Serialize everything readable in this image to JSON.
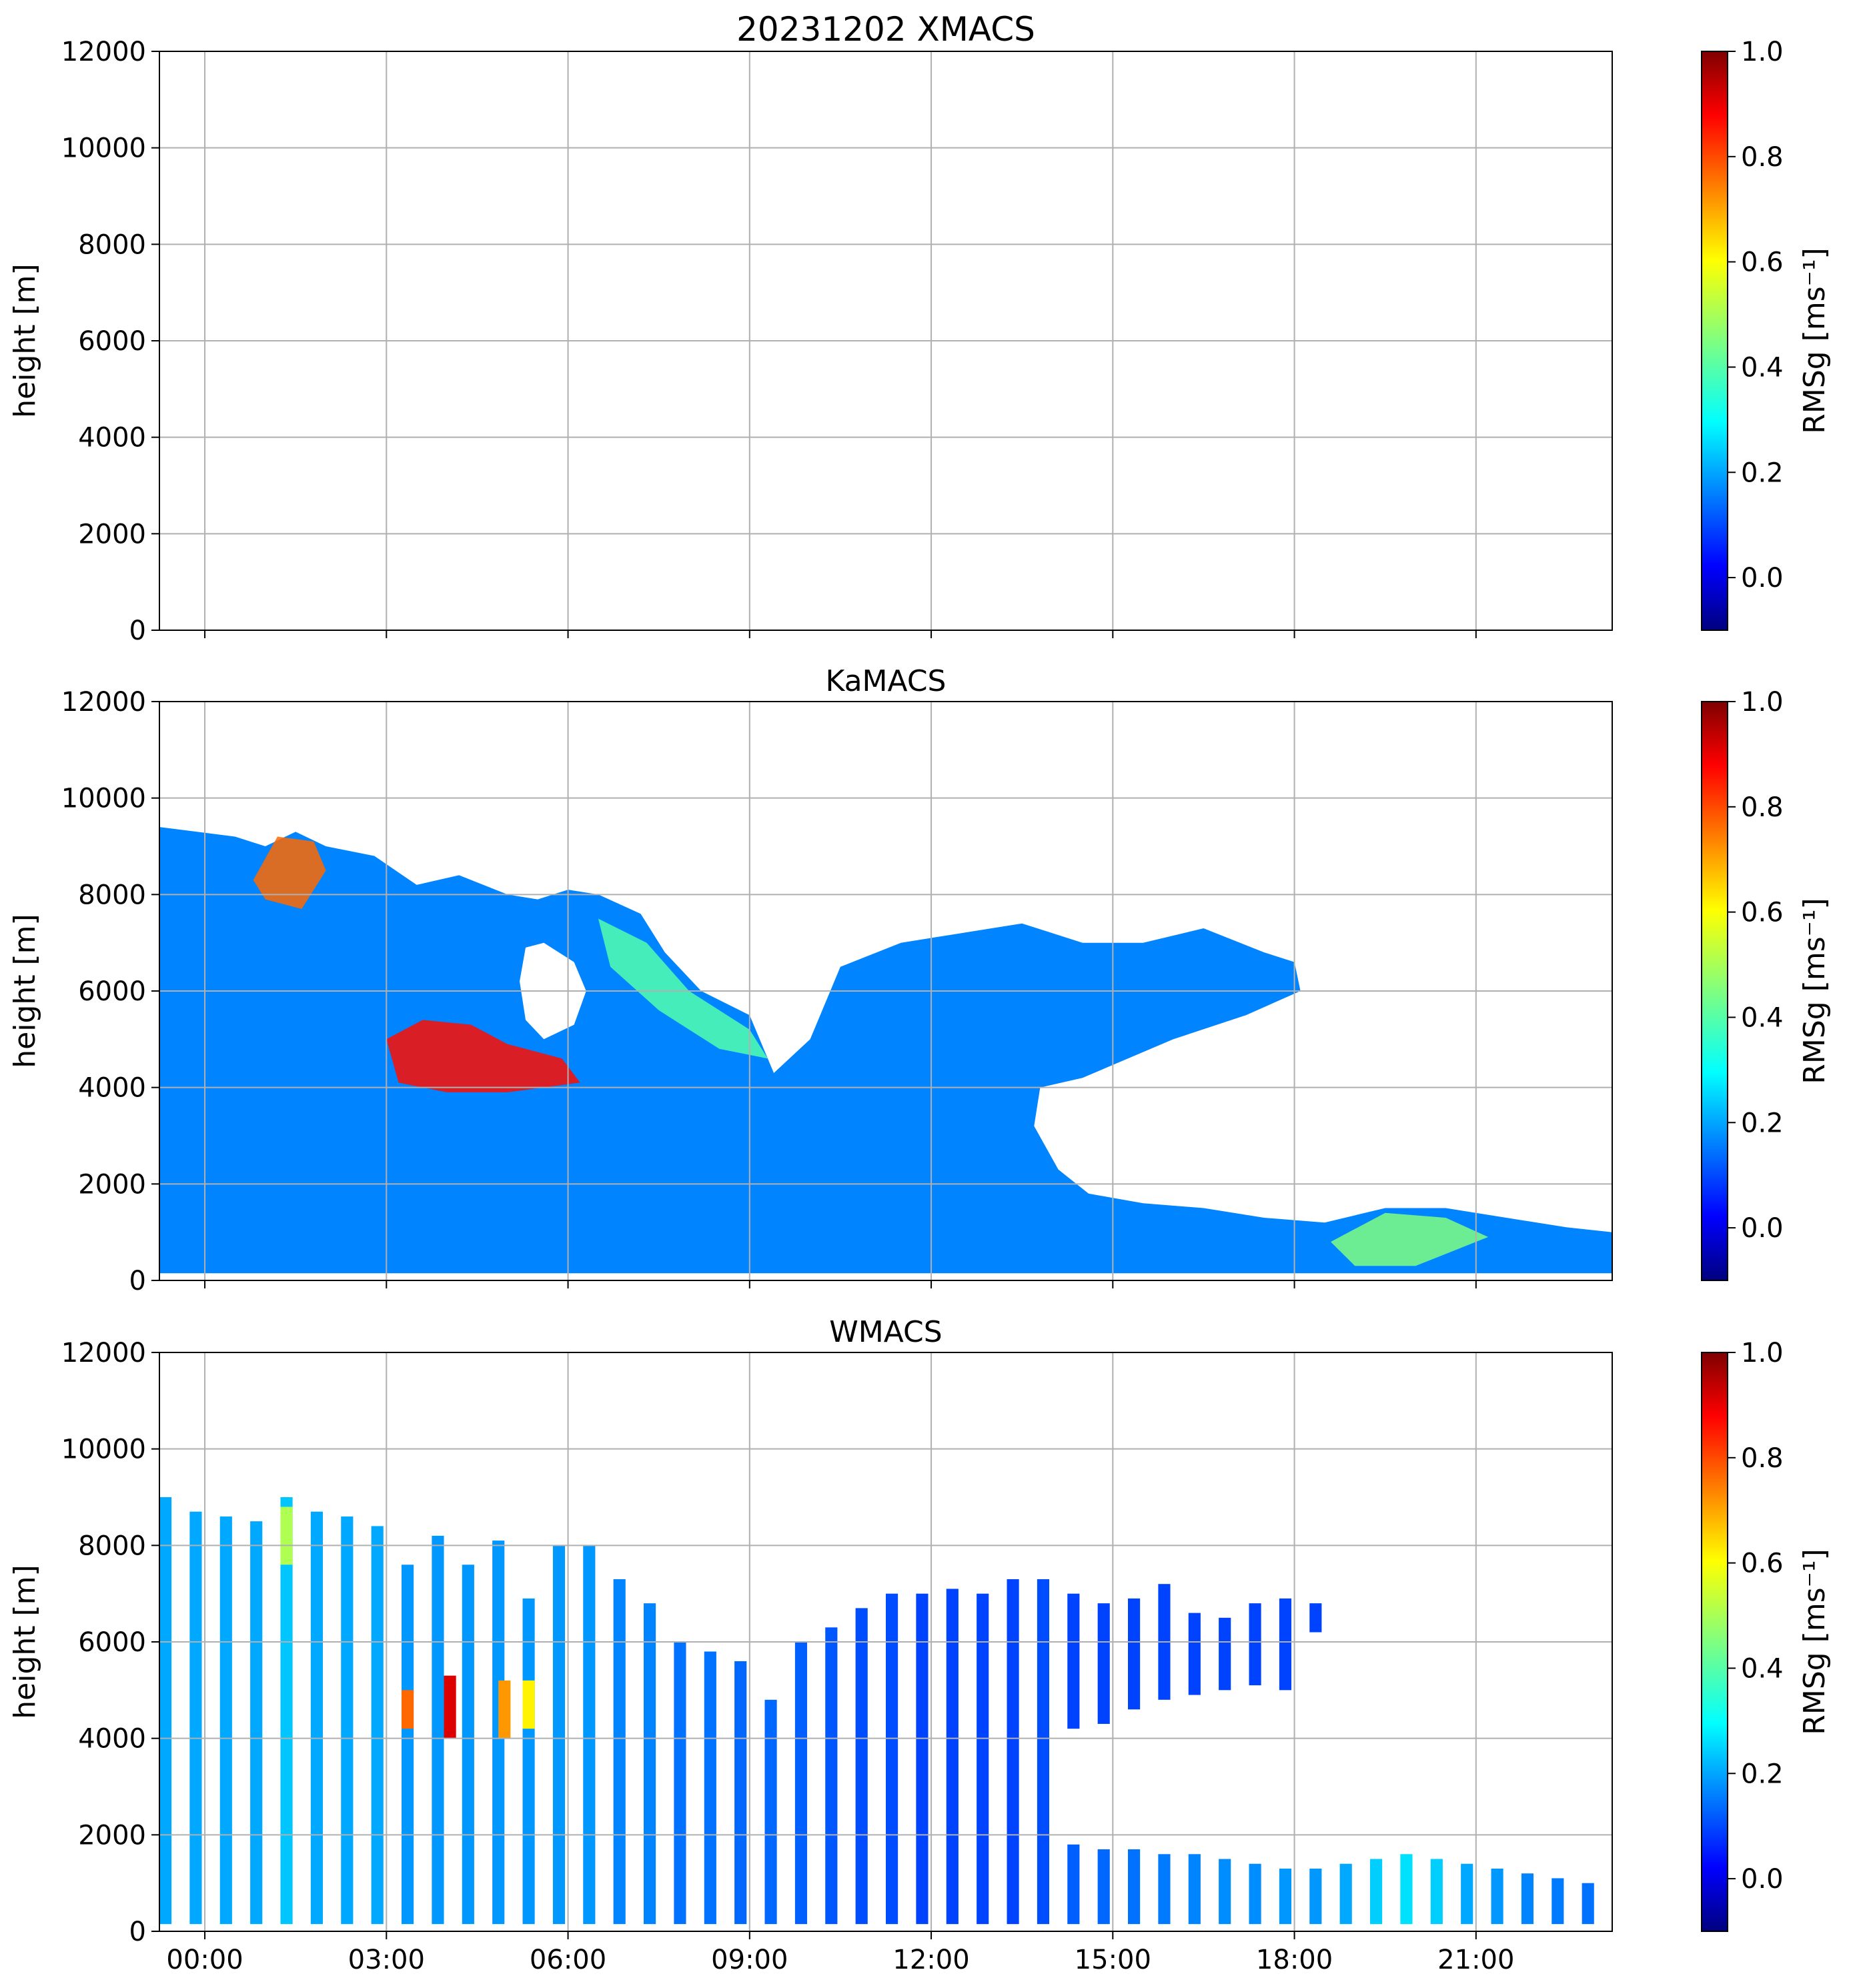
{
  "chart_data": [
    {
      "type": "heatmap",
      "panel": "XMACS",
      "title": "20231202 XMACS",
      "ylabel": "height [m]",
      "xlabel": "",
      "ylim": [
        0,
        12000
      ],
      "xlim_hours": [
        -0.75,
        23.25
      ],
      "yticks": [
        0,
        2000,
        4000,
        6000,
        8000,
        10000,
        12000
      ],
      "xticks_hours": [
        0,
        3,
        6,
        9,
        12,
        15,
        18,
        21
      ],
      "show_xticklabels": false,
      "grid": true,
      "data": "no valid returns (empty panel)",
      "colorbar": {
        "label": "RMSg [ms⁻¹]",
        "range": [
          -0.1,
          1.0
        ],
        "ticks": [
          0.0,
          0.2,
          0.4,
          0.6,
          0.8,
          1.0
        ],
        "cmap": "jet"
      },
      "cloud_regions": []
    },
    {
      "type": "heatmap",
      "panel": "KaMACS",
      "title": "KaMACS",
      "ylabel": "height [m]",
      "xlabel": "",
      "ylim": [
        0,
        12000
      ],
      "xlim_hours": [
        -0.75,
        23.25
      ],
      "yticks": [
        0,
        2000,
        4000,
        6000,
        8000,
        10000,
        12000
      ],
      "xticks_hours": [
        0,
        3,
        6,
        9,
        12,
        15,
        18,
        21
      ],
      "show_xticklabels": false,
      "grid": true,
      "colorbar": {
        "label": "RMSg [ms⁻¹]",
        "range": [
          -0.1,
          1.0
        ],
        "ticks": [
          0.0,
          0.2,
          0.4,
          0.6,
          0.8,
          1.0
        ],
        "cmap": "jet"
      },
      "cloud_regions": [
        {
          "name": "upper cloud deck",
          "rmsg_typical": 0.18,
          "rmsg_max": 1.0,
          "outline": [
            [
              -0.75,
              9400
            ],
            [
              0.5,
              9200
            ],
            [
              1.0,
              9000
            ],
            [
              1.5,
              9300
            ],
            [
              2.0,
              9000
            ],
            [
              2.8,
              8800
            ],
            [
              3.5,
              8200
            ],
            [
              4.2,
              8400
            ],
            [
              5.0,
              8000
            ],
            [
              5.5,
              7900
            ],
            [
              6.0,
              8100
            ],
            [
              6.5,
              8000
            ],
            [
              7.2,
              7600
            ],
            [
              7.6,
              6800
            ],
            [
              8.2,
              6000
            ],
            [
              9.0,
              5500
            ],
            [
              9.4,
              4300
            ],
            [
              10.0,
              5000
            ],
            [
              10.5,
              6500
            ],
            [
              11.5,
              7000
            ],
            [
              12.5,
              7200
            ],
            [
              13.5,
              7400
            ],
            [
              14.5,
              7000
            ],
            [
              15.5,
              7000
            ],
            [
              16.5,
              7300
            ],
            [
              17.5,
              6800
            ],
            [
              18.0,
              6600
            ],
            [
              18.1,
              6000
            ],
            [
              17.2,
              5500
            ],
            [
              16.0,
              5000
            ],
            [
              14.5,
              4200
            ],
            [
              13.8,
              4000
            ],
            [
              13.7,
              3200
            ],
            [
              14.1,
              2300
            ],
            [
              14.6,
              1800
            ],
            [
              15.5,
              1600
            ],
            [
              16.5,
              1500
            ],
            [
              17.5,
              1300
            ],
            [
              18.5,
              1200
            ],
            [
              19.5,
              1500
            ],
            [
              20.5,
              1500
            ],
            [
              21.5,
              1300
            ],
            [
              22.5,
              1100
            ],
            [
              23.25,
              1000
            ],
            [
              23.25,
              150
            ],
            [
              -0.75,
              150
            ]
          ]
        },
        {
          "name": "clear gap",
          "rmsg_typical": null,
          "outline": [
            [
              5.3,
              6900
            ],
            [
              5.6,
              7000
            ],
            [
              6.1,
              6600
            ],
            [
              6.3,
              6000
            ],
            [
              6.1,
              5300
            ],
            [
              5.6,
              5000
            ],
            [
              5.3,
              5400
            ],
            [
              5.2,
              6200
            ]
          ]
        },
        {
          "name": "mid-level turbulence 03:00-06:00",
          "rmsg_typical": 0.85,
          "outline": [
            [
              3.0,
              5000
            ],
            [
              3.6,
              5400
            ],
            [
              4.4,
              5300
            ],
            [
              5.0,
              4900
            ],
            [
              5.9,
              4600
            ],
            [
              6.2,
              4100
            ],
            [
              5.0,
              3900
            ],
            [
              4.0,
              3900
            ],
            [
              3.2,
              4100
            ]
          ]
        },
        {
          "name": "turbulence aloft 01:00-02:00",
          "rmsg_typical": 0.75,
          "outline": [
            [
              0.8,
              8300
            ],
            [
              1.2,
              9200
            ],
            [
              1.8,
              9100
            ],
            [
              2.0,
              8500
            ],
            [
              1.6,
              7700
            ],
            [
              1.0,
              7900
            ]
          ]
        },
        {
          "name": "enhanced near-surface 19:00-21:00",
          "rmsg_typical": 0.45,
          "outline": [
            [
              18.6,
              800
            ],
            [
              19.5,
              1400
            ],
            [
              20.5,
              1300
            ],
            [
              21.2,
              900
            ],
            [
              20.0,
              300
            ],
            [
              19.0,
              300
            ]
          ]
        },
        {
          "name": "mid-level layer 07:00-09:00",
          "rmsg_typical": 0.4,
          "outline": [
            [
              6.5,
              7500
            ],
            [
              7.3,
              7000
            ],
            [
              8.0,
              6000
            ],
            [
              9.0,
              5200
            ],
            [
              9.3,
              4600
            ],
            [
              8.5,
              4800
            ],
            [
              7.5,
              5600
            ],
            [
              6.7,
              6500
            ]
          ]
        }
      ]
    },
    {
      "type": "heatmap",
      "panel": "WMACS",
      "title": "WMACS",
      "ylabel": "height [m]",
      "xlabel": "",
      "ylim": [
        0,
        12000
      ],
      "xlim_hours": [
        -0.75,
        23.25
      ],
      "yticks": [
        0,
        2000,
        4000,
        6000,
        8000,
        10000,
        12000
      ],
      "xticks_hours": [
        0,
        3,
        6,
        9,
        12,
        15,
        18,
        21
      ],
      "xticklabels": [
        "00:00",
        "03:00",
        "06:00",
        "09:00",
        "12:00",
        "15:00",
        "18:00",
        "21:00"
      ],
      "show_xticklabels": true,
      "grid": true,
      "colorbar": {
        "label": "RMSg [ms⁻¹]",
        "range": [
          -0.1,
          1.0
        ],
        "ticks": [
          0.0,
          0.2,
          0.4,
          0.6,
          0.8,
          1.0
        ],
        "cmap": "jet"
      },
      "column_width_hours": 0.2,
      "columns": [
        {
          "t": -0.65,
          "top": 9000,
          "rmsg": 0.22
        },
        {
          "t": -0.15,
          "top": 8700,
          "rmsg": 0.22
        },
        {
          "t": 0.35,
          "top": 8600,
          "rmsg": 0.22
        },
        {
          "t": 0.85,
          "top": 8500,
          "rmsg": 0.22
        },
        {
          "t": 1.35,
          "top": 9000,
          "rmsg": 0.25
        },
        {
          "t": 1.85,
          "top": 8700,
          "rmsg": 0.22
        },
        {
          "t": 2.35,
          "top": 8600,
          "rmsg": 0.22
        },
        {
          "t": 2.85,
          "top": 8400,
          "rmsg": 0.22
        },
        {
          "t": 3.35,
          "top": 7600,
          "rmsg": 0.2
        },
        {
          "t": 3.85,
          "top": 8200,
          "rmsg": 0.2
        },
        {
          "t": 4.35,
          "top": 7600,
          "rmsg": 0.2
        },
        {
          "t": 4.85,
          "top": 8100,
          "rmsg": 0.2
        },
        {
          "t": 5.35,
          "top": 6900,
          "rmsg": 0.2
        },
        {
          "t": 5.85,
          "top": 8000,
          "rmsg": 0.2
        },
        {
          "t": 6.35,
          "top": 8000,
          "rmsg": 0.2
        },
        {
          "t": 6.85,
          "top": 7300,
          "rmsg": 0.18
        },
        {
          "t": 7.35,
          "top": 6800,
          "rmsg": 0.18
        },
        {
          "t": 7.85,
          "top": 6000,
          "rmsg": 0.16
        },
        {
          "t": 8.35,
          "top": 5800,
          "rmsg": 0.16
        },
        {
          "t": 8.85,
          "top": 5600,
          "rmsg": 0.15
        },
        {
          "t": 9.35,
          "top": 4800,
          "rmsg": 0.15
        },
        {
          "t": 9.85,
          "top": 6000,
          "rmsg": 0.14
        },
        {
          "t": 10.35,
          "top": 6300,
          "rmsg": 0.13
        },
        {
          "t": 10.85,
          "top": 6700,
          "rmsg": 0.12
        },
        {
          "t": 11.35,
          "top": 7000,
          "rmsg": 0.12
        },
        {
          "t": 11.85,
          "top": 7000,
          "rmsg": 0.11
        },
        {
          "t": 12.35,
          "top": 7100,
          "rmsg": 0.11
        },
        {
          "t": 12.85,
          "top": 7000,
          "rmsg": 0.11
        },
        {
          "t": 13.35,
          "top": 7300,
          "rmsg": 0.11
        },
        {
          "t": 13.85,
          "top": 7300,
          "rmsg": 0.12
        },
        {
          "t": 14.35,
          "top": 1800,
          "rmsg": 0.14
        },
        {
          "t": 14.85,
          "top": 1700,
          "rmsg": 0.15
        },
        {
          "t": 15.35,
          "top": 1700,
          "rmsg": 0.16
        },
        {
          "t": 15.85,
          "top": 1600,
          "rmsg": 0.17
        },
        {
          "t": 16.35,
          "top": 1600,
          "rmsg": 0.18
        },
        {
          "t": 16.85,
          "top": 1500,
          "rmsg": 0.19
        },
        {
          "t": 17.35,
          "top": 1400,
          "rmsg": 0.19
        },
        {
          "t": 17.85,
          "top": 1300,
          "rmsg": 0.2
        },
        {
          "t": 18.35,
          "top": 1300,
          "rmsg": 0.2
        },
        {
          "t": 18.85,
          "top": 1400,
          "rmsg": 0.22
        },
        {
          "t": 19.35,
          "top": 1500,
          "rmsg": 0.26
        },
        {
          "t": 19.85,
          "top": 1600,
          "rmsg": 0.28
        },
        {
          "t": 20.35,
          "top": 1500,
          "rmsg": 0.26
        },
        {
          "t": 20.85,
          "top": 1400,
          "rmsg": 0.22
        },
        {
          "t": 21.35,
          "top": 1300,
          "rmsg": 0.2
        },
        {
          "t": 21.85,
          "top": 1200,
          "rmsg": 0.18
        },
        {
          "t": 22.35,
          "top": 1100,
          "rmsg": 0.17
        },
        {
          "t": 22.85,
          "top": 1000,
          "rmsg": 0.16
        }
      ],
      "upper_segments": [
        {
          "t": 14.35,
          "bottom": 4200,
          "top": 7000
        },
        {
          "t": 14.85,
          "bottom": 4300,
          "top": 6800
        },
        {
          "t": 15.35,
          "bottom": 4600,
          "top": 6900
        },
        {
          "t": 15.85,
          "bottom": 4800,
          "top": 7200
        },
        {
          "t": 16.35,
          "bottom": 4900,
          "top": 6600
        },
        {
          "t": 16.85,
          "bottom": 5000,
          "top": 6500
        },
        {
          "t": 17.35,
          "bottom": 5100,
          "top": 6800
        },
        {
          "t": 17.85,
          "bottom": 5000,
          "top": 6900
        },
        {
          "t": 18.35,
          "bottom": 6200,
          "top": 6800
        }
      ],
      "hot_spots": [
        {
          "t": 4.05,
          "bottom": 4000,
          "top": 5300,
          "rmsg": 0.9
        },
        {
          "t": 3.35,
          "bottom": 4200,
          "top": 5000,
          "rmsg": 0.75
        },
        {
          "t": 4.95,
          "bottom": 4000,
          "top": 5200,
          "rmsg": 0.7
        },
        {
          "t": 5.35,
          "bottom": 4200,
          "top": 5200,
          "rmsg": 0.6
        },
        {
          "t": 1.35,
          "bottom": 7600,
          "top": 8800,
          "rmsg": 0.5
        }
      ]
    }
  ]
}
